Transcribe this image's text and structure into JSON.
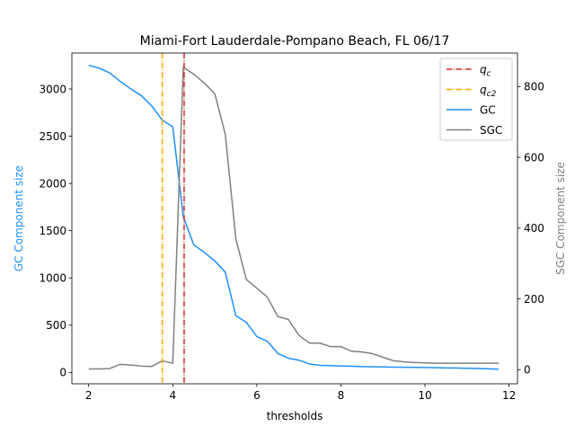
{
  "chart_data": {
    "type": "line",
    "title": "Miami-Fort Lauderdale-Pompano Beach, FL 06/17",
    "xlabel": "thresholds",
    "ylabel_left": "GC Component size",
    "ylabel_right": "SGC Component size",
    "xlim": [
      1.6,
      12.2
    ],
    "ylim_left": [
      -120,
      3380
    ],
    "ylim_right": [
      -40,
      895
    ],
    "xticks": [
      2,
      4,
      6,
      8,
      10,
      12
    ],
    "yticks_left": [
      0,
      500,
      1000,
      1500,
      2000,
      2500,
      3000
    ],
    "yticks_right": [
      0,
      200,
      400,
      600,
      800
    ],
    "legend_position": "top-right",
    "vlines": [
      {
        "name": "q_c",
        "x": 4.27,
        "color": "#d62728",
        "style": "dashdot"
      },
      {
        "name": "q_c2",
        "x": 3.75,
        "color": "#ffa500",
        "style": "dashdot"
      }
    ],
    "legend": [
      {
        "label": "q",
        "sub": "c",
        "italic": true,
        "color": "#d62728",
        "style": "dashdot"
      },
      {
        "label": "q",
        "sub": "c2",
        "italic": true,
        "color": "#ffa500",
        "style": "dashdot"
      },
      {
        "label": "GC",
        "sub": "",
        "italic": false,
        "color": "#1e90ff",
        "style": "solid"
      },
      {
        "label": "SGC",
        "sub": "",
        "italic": false,
        "color": "#808080",
        "style": "solid"
      }
    ],
    "series": [
      {
        "name": "GC",
        "axis": "left",
        "color": "#1e90ff",
        "x": [
          2.0,
          2.25,
          2.5,
          2.75,
          3.0,
          3.25,
          3.5,
          3.75,
          4.0,
          4.25,
          4.5,
          4.75,
          5.0,
          5.25,
          5.5,
          5.75,
          6.0,
          6.25,
          6.5,
          6.75,
          7.0,
          7.25,
          7.5,
          7.75,
          8.0,
          8.25,
          8.5,
          8.75,
          9.0,
          9.25,
          9.5,
          9.75,
          10.0,
          10.25,
          10.5,
          10.75,
          11.0,
          11.25,
          11.5,
          11.75
        ],
        "values": [
          3250,
          3220,
          3170,
          3080,
          3000,
          2930,
          2820,
          2670,
          2600,
          1650,
          1350,
          1270,
          1180,
          1060,
          600,
          530,
          380,
          330,
          200,
          150,
          130,
          90,
          75,
          72,
          68,
          65,
          62,
          60,
          58,
          56,
          55,
          54,
          52,
          50,
          48,
          46,
          44,
          42,
          38,
          35
        ]
      },
      {
        "name": "SGC",
        "axis": "right",
        "color": "#808080",
        "x": [
          2.0,
          2.25,
          2.5,
          2.75,
          3.0,
          3.25,
          3.5,
          3.75,
          4.0,
          4.25,
          4.5,
          4.75,
          5.0,
          5.25,
          5.5,
          5.75,
          6.0,
          6.25,
          6.5,
          6.75,
          7.0,
          7.25,
          7.5,
          7.75,
          8.0,
          8.25,
          8.5,
          8.75,
          9.0,
          9.25,
          9.5,
          9.75,
          10.0,
          10.25,
          10.5,
          10.75,
          11.0,
          11.25,
          11.5,
          11.75
        ],
        "values": [
          2,
          2,
          3,
          15,
          13,
          10,
          9,
          25,
          18,
          855,
          835,
          810,
          780,
          665,
          370,
          255,
          230,
          205,
          150,
          142,
          97,
          75,
          75,
          65,
          65,
          52,
          50,
          45,
          35,
          25,
          22,
          20,
          19,
          18,
          18,
          18,
          18,
          18,
          18,
          18
        ]
      }
    ]
  }
}
